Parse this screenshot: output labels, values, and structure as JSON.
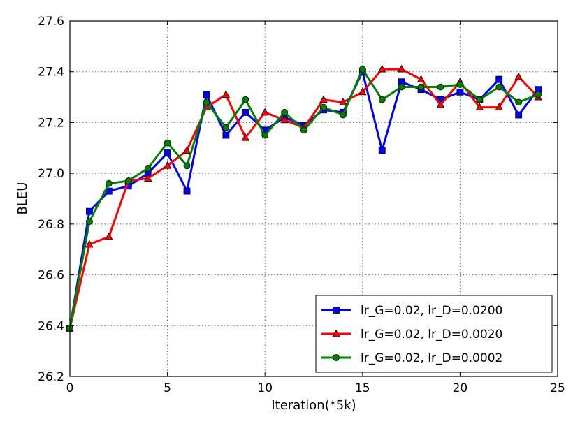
{
  "chart_data": {
    "type": "line",
    "title": "",
    "xlabel": "Iteration(*5k)",
    "ylabel": "BLEU",
    "xlim": [
      0,
      25
    ],
    "ylim": [
      26.2,
      27.6
    ],
    "xticks": [
      "0",
      "5",
      "10",
      "15",
      "20",
      "25"
    ],
    "yticks": [
      "26.2",
      "26.4",
      "26.6",
      "26.8",
      "27.0",
      "27.2",
      "27.4",
      "27.6"
    ],
    "grid": true,
    "legend_position": "lower-right",
    "x": [
      0,
      1,
      2,
      3,
      4,
      5,
      6,
      7,
      8,
      9,
      10,
      11,
      12,
      13,
      14,
      15,
      16,
      17,
      18,
      19,
      20,
      21,
      22,
      23,
      24
    ],
    "series": [
      {
        "name": "lr_G=0.02, lr_D=0.0200",
        "color": "#0000ff",
        "marker": "square",
        "values": [
          26.39,
          26.85,
          26.93,
          26.95,
          27.0,
          27.08,
          26.93,
          27.31,
          27.15,
          27.24,
          27.17,
          27.22,
          27.19,
          27.25,
          27.24,
          27.4,
          27.09,
          27.36,
          27.33,
          27.29,
          27.32,
          27.29,
          27.37,
          27.23,
          27.33
        ]
      },
      {
        "name": "lr_G=0.02, lr_D=0.0020",
        "color": "#ff0000",
        "marker": "triangle",
        "values": [
          26.39,
          26.72,
          26.75,
          26.97,
          26.98,
          27.03,
          27.09,
          27.26,
          27.31,
          27.14,
          27.24,
          27.21,
          27.18,
          27.29,
          27.28,
          27.32,
          27.41,
          27.41,
          27.37,
          27.27,
          27.36,
          27.26,
          27.26,
          27.38,
          27.3
        ]
      },
      {
        "name": "lr_G=0.02, lr_D=0.0002",
        "color": "#008000",
        "marker": "circle",
        "values": [
          26.39,
          26.81,
          26.96,
          26.97,
          27.02,
          27.12,
          27.03,
          27.28,
          27.18,
          27.29,
          27.15,
          27.24,
          27.17,
          27.26,
          27.23,
          27.41,
          27.29,
          27.34,
          27.34,
          27.34,
          27.35,
          27.29,
          27.34,
          27.28,
          27.31
        ]
      }
    ]
  }
}
